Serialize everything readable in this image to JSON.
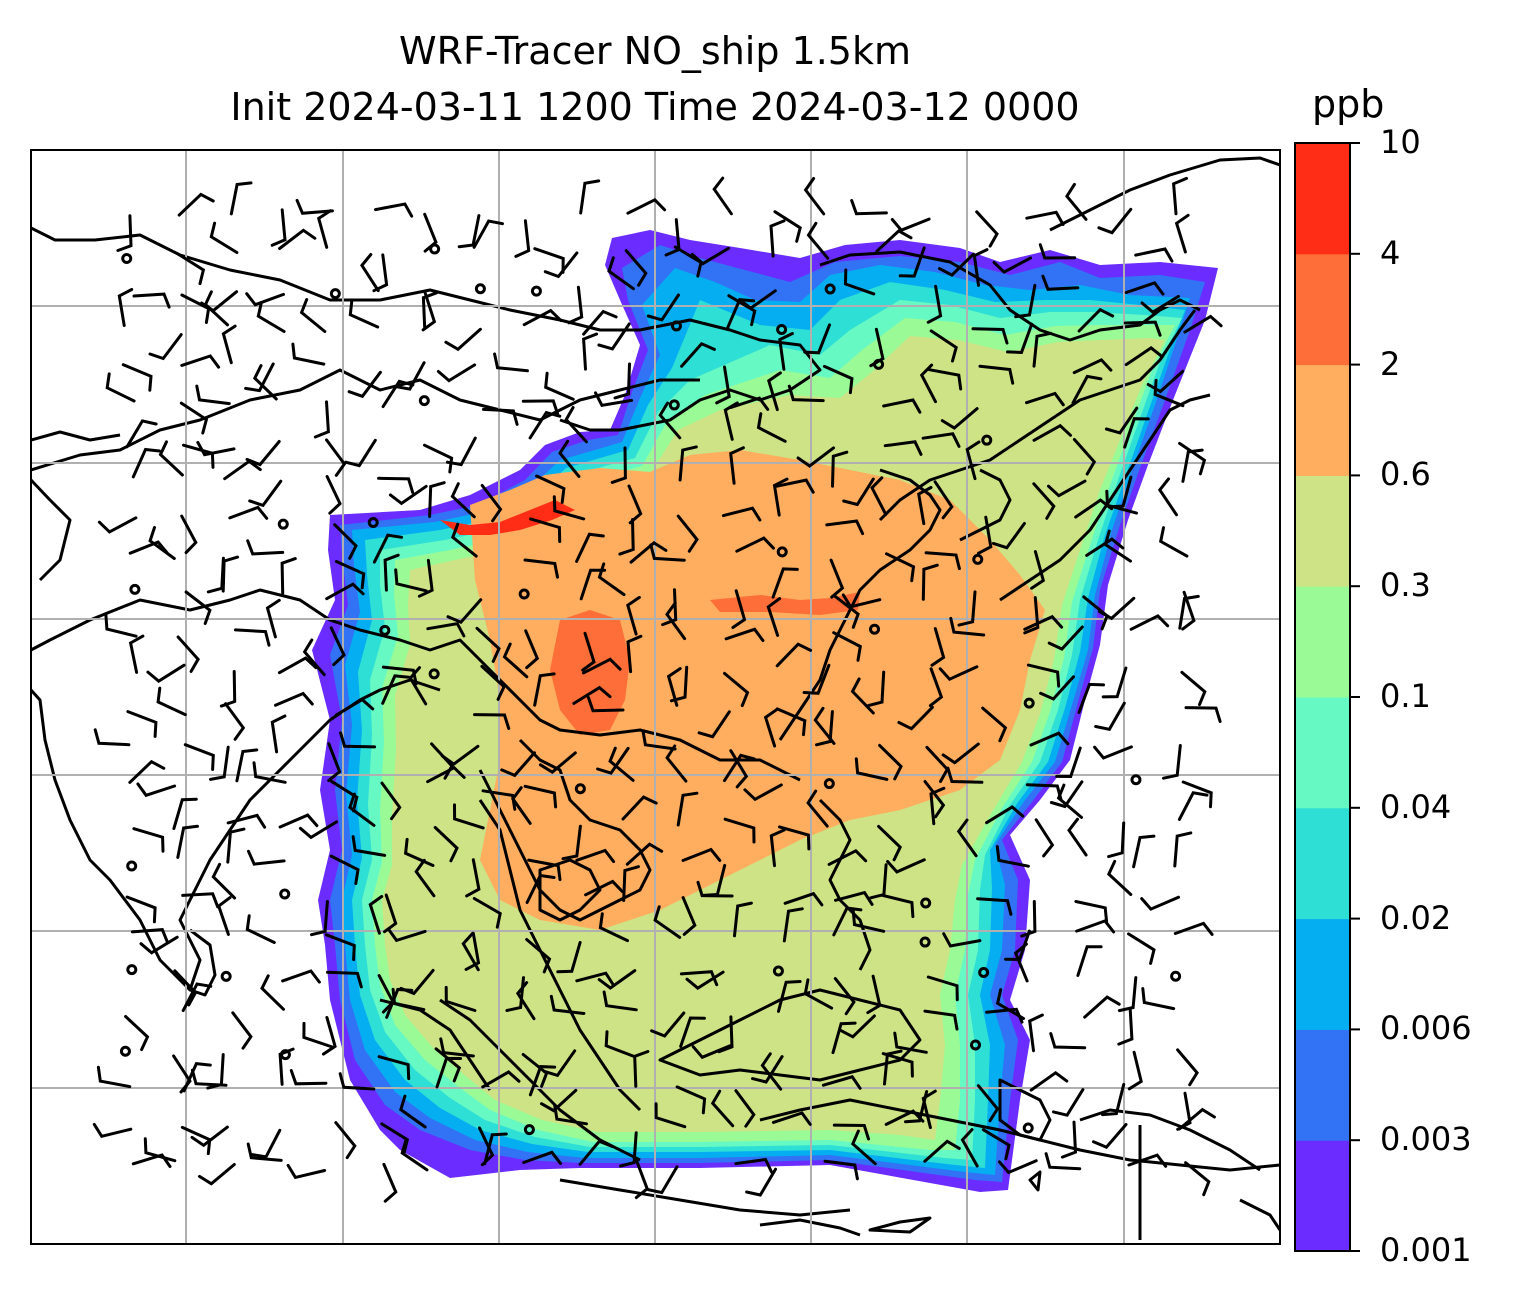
{
  "title": {
    "line1": "WRF-Tracer NO_ship 1.5km",
    "line2": "Init 2024-03-11 1200 Time 2024-03-12 0000"
  },
  "colorbar": {
    "unit": "ppb",
    "levels": [
      "0.001",
      "0.003",
      "0.006",
      "0.02",
      "0.04",
      "0.1",
      "0.3",
      "0.6",
      "2",
      "4",
      "10"
    ],
    "colors": [
      "#6a2cff",
      "#3272f5",
      "#05aef0",
      "#2edfd6",
      "#66f9c4",
      "#99fa96",
      "#cde385",
      "#ffad5e",
      "#fe6e38",
      "#ff2d16"
    ]
  },
  "map": {
    "coastline_color": "#000000",
    "grid_color": "#b0b0b0",
    "wind_barb_color": "#000000"
  }
}
